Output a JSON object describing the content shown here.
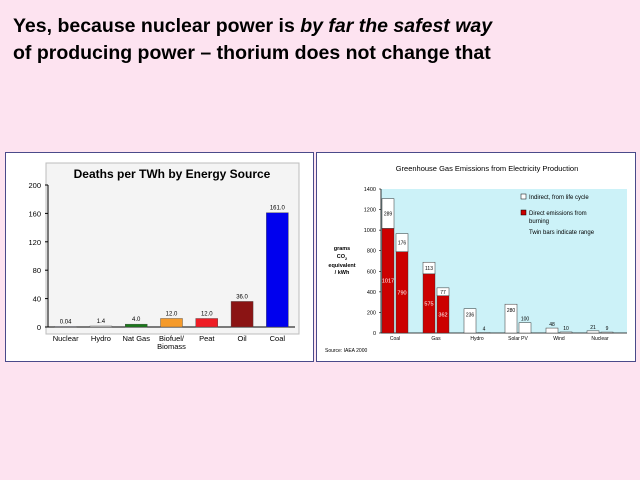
{
  "headline": {
    "line1_plain": "Yes, because nuclear power is ",
    "line1_emph": "by far the safest way",
    "line2": "of producing power – thorium does not change that"
  },
  "chart_data": [
    {
      "type": "bar",
      "title": "Deaths per TWh by Energy Source",
      "categories": [
        "Nuclear",
        "Hydro",
        "Nat Gas",
        "Biofuel/ Biomass",
        "Peat",
        "Oil",
        "Coal"
      ],
      "category_lines": [
        [
          "Nuclear"
        ],
        [
          "Hydro"
        ],
        [
          "Nat Gas"
        ],
        [
          "Biofuel/",
          "Biomass"
        ],
        [
          "Peat"
        ],
        [
          "Oil"
        ],
        [
          "Coal"
        ]
      ],
      "values": [
        0.04,
        1.4,
        4.0,
        12.0,
        12.0,
        36.0,
        161.0
      ],
      "value_labels": [
        "0.04",
        "1.4",
        "4.0",
        "12.0",
        "12.0",
        "36.0",
        "161.0"
      ],
      "colors": [
        "#e6e6ff",
        "#e8e8e8",
        "#1a7a1a",
        "#f59a2a",
        "#ee1c24",
        "#8b1414",
        "#0000ee"
      ],
      "ylim": [
        0,
        200
      ],
      "yticks": [
        "0",
        "40",
        "80",
        "120",
        "160",
        "200"
      ],
      "ytick_values": [
        0,
        40,
        80,
        120,
        160,
        200
      ],
      "xlabel": "",
      "ylabel": "",
      "grid": false
    },
    {
      "type": "bar",
      "title": "Greenhouse Gas Emissions from Electricity Production",
      "ylabel_lines": [
        "grams",
        "CO",
        "equivalent",
        "/ kWh"
      ],
      "ylabel_sub": "2",
      "ylim": [
        0,
        1400
      ],
      "yticks": [
        "0",
        "200",
        "400",
        "600",
        "800",
        "1000",
        "1200",
        "1400"
      ],
      "ytick_values": [
        0,
        200,
        400,
        600,
        800,
        1000,
        1200,
        1400
      ],
      "categories": [
        "Coal",
        "Gas",
        "Hydro",
        "Solar PV",
        "Wind",
        "Nuclear"
      ],
      "series": [
        {
          "name": "Indirect, from life cycle",
          "color": "#ffffff"
        },
        {
          "name": "Direct emissions from burning",
          "color": "#cc0000"
        }
      ],
      "legend_lines": [
        [
          "Indirect, from life cycle"
        ],
        [
          "Direct emissions from",
          "burning"
        ]
      ],
      "legend_note": "Twin bars indicate range",
      "legend_placement": "top-right",
      "bars": [
        {
          "category": "Coal",
          "direct": 1017,
          "indirect": 289,
          "direct_label": "1017",
          "indirect_label": "289"
        },
        {
          "category": "Coal",
          "direct": 790,
          "indirect": 176,
          "direct_label": "790",
          "indirect_label": "176"
        },
        {
          "category": "Gas",
          "direct": 575,
          "indirect": 113,
          "direct_label": "575",
          "indirect_label": "113"
        },
        {
          "category": "Gas",
          "direct": 362,
          "indirect": 77,
          "direct_label": "362",
          "indirect_label": "77"
        },
        {
          "category": "Hydro",
          "direct": 0,
          "indirect": 236,
          "direct_label": "",
          "indirect_label": "236"
        },
        {
          "category": "Hydro",
          "direct": 0,
          "indirect": 4,
          "direct_label": "",
          "indirect_label": "4"
        },
        {
          "category": "Solar PV",
          "direct": 0,
          "indirect": 280,
          "direct_label": "",
          "indirect_label": "280"
        },
        {
          "category": "Solar PV",
          "direct": 0,
          "indirect": 100,
          "direct_label": "",
          "indirect_label": "100"
        },
        {
          "category": "Wind",
          "direct": 0,
          "indirect": 48,
          "direct_label": "",
          "indirect_label": "48"
        },
        {
          "category": "Wind",
          "direct": 0,
          "indirect": 10,
          "direct_label": "",
          "indirect_label": "10"
        },
        {
          "category": "Nuclear",
          "direct": 0,
          "indirect": 21,
          "direct_label": "",
          "indirect_label": "21"
        },
        {
          "category": "Nuclear",
          "direct": 0,
          "indirect": 9,
          "direct_label": "",
          "indirect_label": "9"
        }
      ],
      "source": "Source: IAEA 2000",
      "plot_background": "#ccf2f8",
      "grid": false
    }
  ]
}
